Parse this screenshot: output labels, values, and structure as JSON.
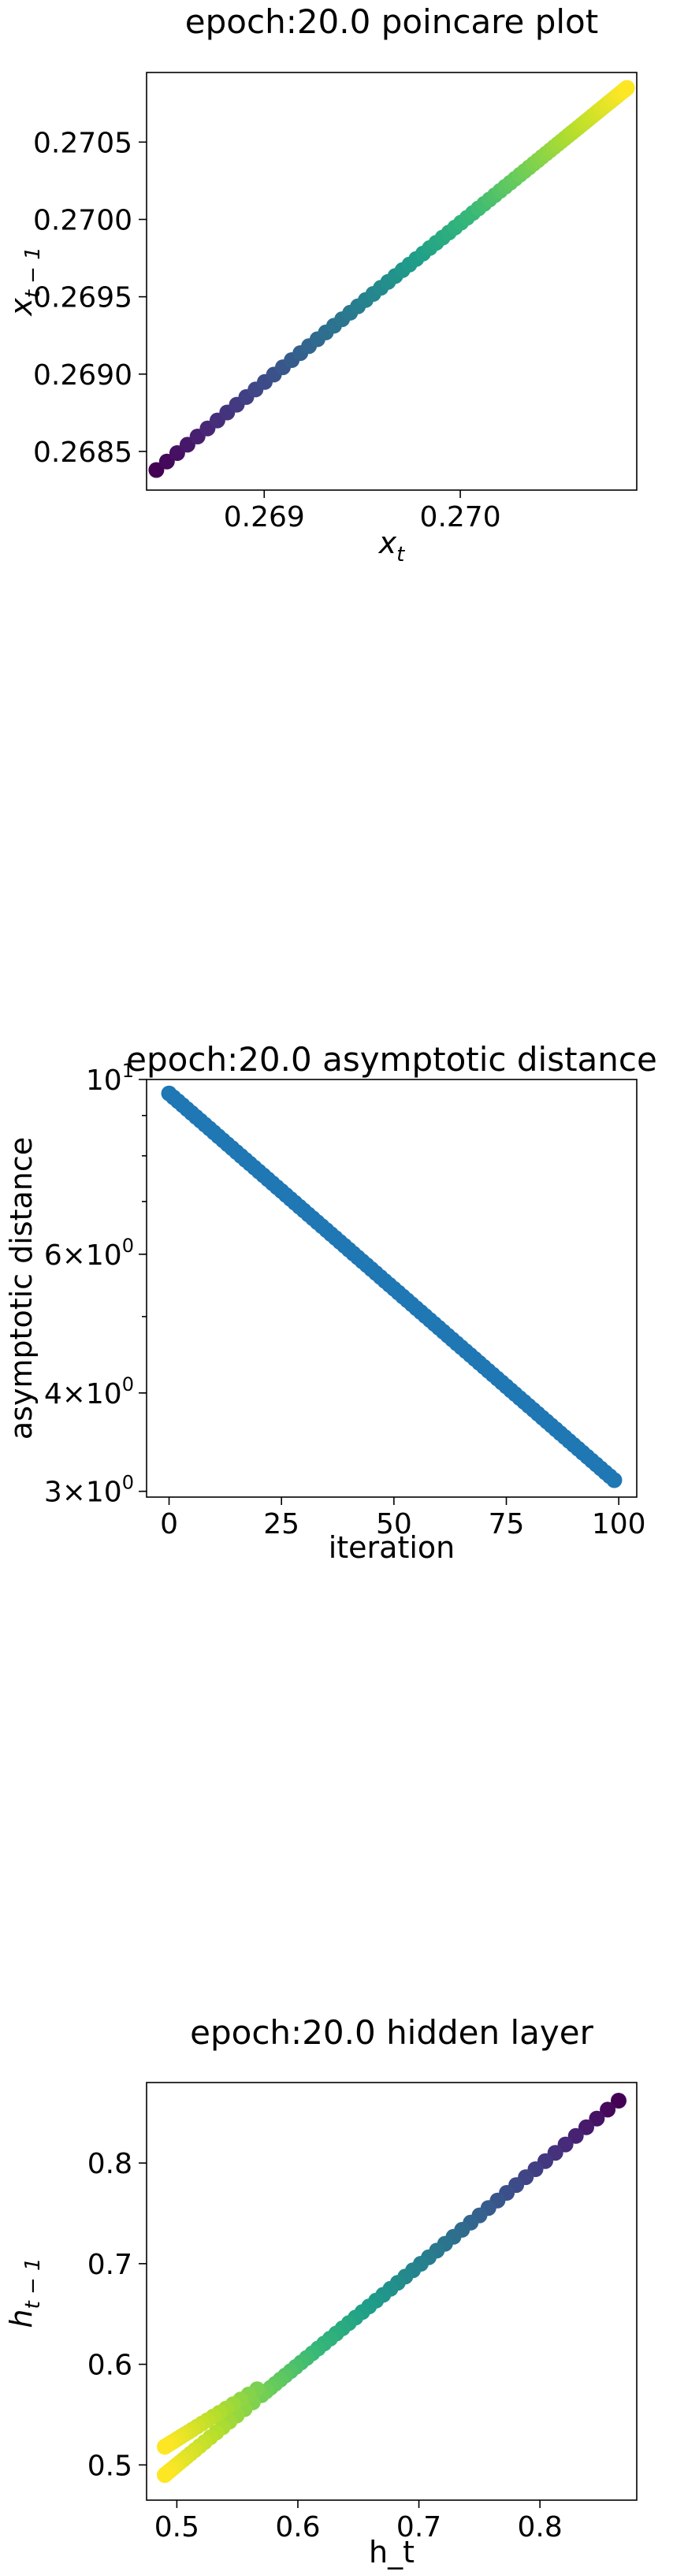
{
  "chart_data": [
    {
      "type": "scatter",
      "title": "epoch:20.0 poincare plot",
      "xlabel": "x_t",
      "ylabel": "x_{t-1}",
      "xlim": [
        0.2684,
        0.2709
      ],
      "ylim": [
        0.26825,
        0.27095
      ],
      "xticks": [
        0.269,
        0.27
      ],
      "xtick_labels": [
        "0.269",
        "0.270"
      ],
      "yticks": [
        0.2685,
        0.269,
        0.2695,
        0.27,
        0.2705
      ],
      "ytick_labels": [
        "0.2685",
        "0.2690",
        "0.2695",
        "0.2700",
        "0.2705"
      ],
      "colormap": "viridis",
      "point_count": 99,
      "x_start": 0.26845,
      "x_end": 0.27085,
      "y_start": 0.26838,
      "y_end": 0.27085,
      "grid": false
    },
    {
      "type": "scatter",
      "title": "epoch:20.0 asymptotic distance",
      "xlabel": "iteration",
      "ylabel": "asymptotic distance",
      "yscale": "log",
      "xlim": [
        -5,
        104
      ],
      "ylim": [
        2.95,
        10.0
      ],
      "xticks": [
        0,
        25,
        50,
        75,
        100
      ],
      "xtick_labels": [
        "0",
        "25",
        "50",
        "75",
        "100"
      ],
      "ytick_labels": [
        {
          "value": 10,
          "base": "10",
          "exp": "1"
        },
        {
          "value": 6,
          "base": "6×10",
          "exp": "0"
        },
        {
          "value": 4,
          "base": "4×10",
          "exp": "0"
        },
        {
          "value": 3,
          "base": "3×10",
          "exp": "0"
        }
      ],
      "color": "#1f77b4",
      "point_count": 100,
      "y_start": 9.6,
      "y_end": 3.1,
      "grid": false
    },
    {
      "type": "scatter",
      "title": "epoch:20.0 hidden layer",
      "xlabel": "h_t",
      "ylabel": "h_{t-1}",
      "xlim": [
        0.475,
        0.88
      ],
      "ylim": [
        0.465,
        0.88
      ],
      "xticks": [
        0.5,
        0.6,
        0.7,
        0.8
      ],
      "xtick_labels": [
        "0.5",
        "0.6",
        "0.7",
        "0.8"
      ],
      "yticks": [
        0.5,
        0.6,
        0.7,
        0.8
      ],
      "ytick_labels": [
        "0.5",
        "0.6",
        "0.7",
        "0.8"
      ],
      "colormap": "viridis_r",
      "point_count": 100,
      "x_start": 0.865,
      "x_end": 0.49,
      "y_start": 0.862,
      "y_end": 0.49,
      "grid": false
    }
  ]
}
